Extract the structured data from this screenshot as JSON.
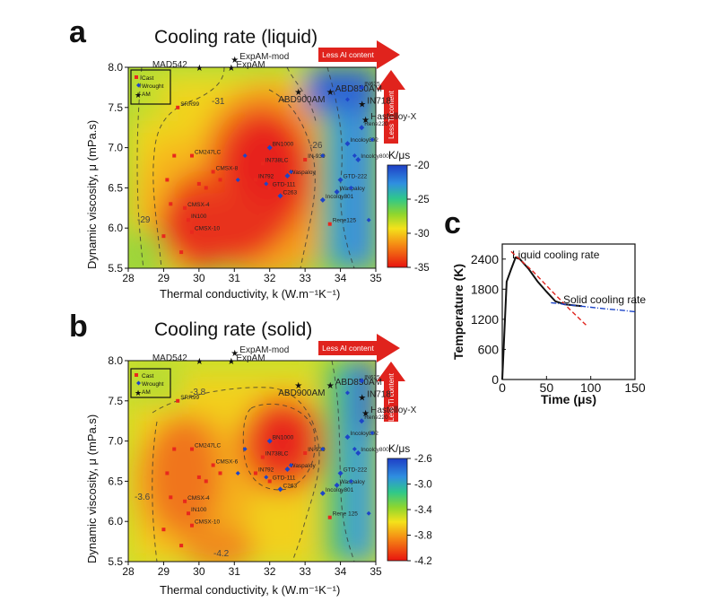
{
  "panel_a": {
    "letter": "a",
    "title": "Cooling rate (liquid)",
    "ylabel": "Dynamic viscosity, μ (mPa.s)",
    "xlabel": "Thermal conductivity, k (W.m⁻¹K⁻¹)",
    "less_al": "Less Al content",
    "less_ti": "Less Ti content",
    "cb_title": "K/μs",
    "contour_labels": [
      "-31",
      "-29",
      "-26"
    ]
  },
  "panel_b": {
    "letter": "b",
    "title": "Cooling rate (solid)",
    "ylabel": "Dynamic viscosity, μ (mPa.s)",
    "xlabel": "Thermal conductivity, k (W.m⁻¹K⁻¹)",
    "less_al": "Less Al content",
    "less_ti": "Less Ti content",
    "cb_title": "K/μs",
    "contour_labels": [
      "-3.8",
      "-3.6",
      "-4.2"
    ]
  },
  "panel_c": {
    "letter": "c",
    "annotation_liquid": "Liquid cooling rate",
    "annotation_solid": "Solid cooling rate"
  },
  "legend": {
    "cast": "Cast",
    "wrought": "Wrought",
    "am": "AM"
  },
  "colors": {
    "red": "#e8281d",
    "blue": "#1d45c8",
    "arrow_red": "#e0231d"
  },
  "chart_data": [
    {
      "type": "heatmap",
      "title": "Cooling rate (liquid)",
      "xlabel": "Thermal conductivity, k (W.m⁻¹K⁻¹)",
      "ylabel": "Dynamic viscosity, μ (mPa.s)",
      "xlim": [
        28,
        35
      ],
      "ylim": [
        5.5,
        8.0
      ],
      "x_ticks": [
        "28",
        "29",
        "30",
        "31",
        "32",
        "33",
        "34",
        "35"
      ],
      "y_ticks": [
        "5.5",
        "6.0",
        "6.5",
        "7.0",
        "7.5",
        "8.0"
      ],
      "colorbar": {
        "label": "K/μs",
        "ticks": [
          "-20",
          "-25",
          "-30",
          "-35"
        ],
        "range": [
          -35,
          -20
        ]
      },
      "legend": [
        "Cast",
        "Wrought",
        "AM"
      ],
      "grid": false,
      "alloy_labels": [
        {
          "name": "MAD542",
          "x": 30.0,
          "y": 8.0,
          "family": "AM"
        },
        {
          "name": "ExpAM-mod",
          "x": 31.0,
          "y": 8.1,
          "family": "AM"
        },
        {
          "name": "ExpAM",
          "x": 30.9,
          "y": 8.0,
          "family": "AM"
        },
        {
          "name": "ABD850AM",
          "x": 33.7,
          "y": 7.7,
          "family": "AM"
        },
        {
          "name": "ABD900AM",
          "x": 32.8,
          "y": 7.7,
          "family": "AM"
        },
        {
          "name": "IN718",
          "x": 34.6,
          "y": 7.55,
          "family": "AM"
        },
        {
          "name": "Hastelloy-X",
          "x": 34.7,
          "y": 7.35,
          "family": "AM"
        },
        {
          "name": "IN625",
          "x": 34.6,
          "y": 7.75,
          "family": "Wrought"
        },
        {
          "name": "Rene220",
          "x": 34.6,
          "y": 7.25,
          "family": "Wrought"
        },
        {
          "name": "Incoloy802",
          "x": 34.2,
          "y": 7.05,
          "family": "Wrought"
        },
        {
          "name": "Incoloy800",
          "x": 34.5,
          "y": 6.85,
          "family": "Wrought"
        },
        {
          "name": "GTD-222",
          "x": 34.0,
          "y": 6.6,
          "family": "Wrought"
        },
        {
          "name": "Waspaloy",
          "x": 33.9,
          "y": 6.45,
          "family": "Wrought"
        },
        {
          "name": "Incoloy801",
          "x": 33.5,
          "y": 6.35,
          "family": "Wrought"
        },
        {
          "name": "Rene125",
          "x": 33.7,
          "y": 6.05,
          "family": "Cast"
        },
        {
          "name": "IN-939",
          "x": 33.0,
          "y": 6.85,
          "family": "Cast"
        },
        {
          "name": "BN1000",
          "x": 32.0,
          "y": 7.0,
          "family": "Wrought"
        },
        {
          "name": "IN738LC",
          "x": 31.8,
          "y": 6.8,
          "family": "Cast"
        },
        {
          "name": "Waspaloy",
          "x": 32.5,
          "y": 6.65,
          "family": "Wrought"
        },
        {
          "name": "IN792",
          "x": 31.6,
          "y": 6.6,
          "family": "Cast"
        },
        {
          "name": "GTD-111",
          "x": 32.0,
          "y": 6.5,
          "family": "Cast"
        },
        {
          "name": "C263",
          "x": 32.3,
          "y": 6.4,
          "family": "Wrought"
        },
        {
          "name": "SRR99",
          "x": 29.4,
          "y": 7.5,
          "family": "Cast"
        },
        {
          "name": "CM247LC",
          "x": 29.8,
          "y": 6.9,
          "family": "Cast"
        },
        {
          "name": "CMSX-8",
          "x": 30.4,
          "y": 6.7,
          "family": "Cast"
        },
        {
          "name": "CMSX-4",
          "x": 29.6,
          "y": 6.25,
          "family": "Cast"
        },
        {
          "name": "IN100",
          "x": 29.7,
          "y": 6.1,
          "family": "Cast"
        },
        {
          "name": "CMSX-10",
          "x": 29.8,
          "y": 5.95,
          "family": "Cast"
        }
      ]
    },
    {
      "type": "heatmap",
      "title": "Cooling rate (solid)",
      "xlabel": "Thermal conductivity, k (W.m⁻¹K⁻¹)",
      "ylabel": "Dynamic viscosity, μ (mPa.s)",
      "xlim": [
        28,
        35
      ],
      "ylim": [
        5.5,
        8.0
      ],
      "x_ticks": [
        "28",
        "29",
        "30",
        "31",
        "32",
        "33",
        "34",
        "35"
      ],
      "y_ticks": [
        "5.5",
        "6.0",
        "6.5",
        "7.0",
        "7.5",
        "8.0"
      ],
      "colorbar": {
        "label": "K/μs",
        "ticks": [
          "-2.6",
          "-3.0",
          "-3.4",
          "-3.8",
          "-4.2"
        ],
        "range": [
          -4.2,
          -2.6
        ]
      },
      "legend": [
        "Cast",
        "Wrought",
        "AM"
      ],
      "grid": false,
      "alloy_labels": [
        {
          "name": "MAD542",
          "x": 30.0,
          "y": 8.0,
          "family": "AM"
        },
        {
          "name": "ExpAM-mod",
          "x": 31.0,
          "y": 8.1,
          "family": "AM"
        },
        {
          "name": "ExpAM",
          "x": 30.9,
          "y": 8.0,
          "family": "AM"
        },
        {
          "name": "ABD850AM",
          "x": 33.7,
          "y": 7.7,
          "family": "AM"
        },
        {
          "name": "ABD900AM",
          "x": 32.8,
          "y": 7.7,
          "family": "AM"
        },
        {
          "name": "IN718",
          "x": 34.6,
          "y": 7.55,
          "family": "AM"
        },
        {
          "name": "Hastelloy-X",
          "x": 34.7,
          "y": 7.35,
          "family": "AM"
        },
        {
          "name": "IN625",
          "x": 34.6,
          "y": 7.75,
          "family": "Wrought"
        },
        {
          "name": "Rene220",
          "x": 34.6,
          "y": 7.25,
          "family": "Wrought"
        },
        {
          "name": "Incoloy802",
          "x": 34.2,
          "y": 7.05,
          "family": "Wrought"
        },
        {
          "name": "Incoloy800",
          "x": 34.5,
          "y": 6.85,
          "family": "Wrought"
        },
        {
          "name": "GTD-222",
          "x": 34.0,
          "y": 6.6,
          "family": "Wrought"
        },
        {
          "name": "Waspaloy",
          "x": 33.9,
          "y": 6.45,
          "family": "Wrought"
        },
        {
          "name": "Incoloy801",
          "x": 33.5,
          "y": 6.35,
          "family": "Wrought"
        },
        {
          "name": "Rene 125",
          "x": 33.7,
          "y": 6.05,
          "family": "Cast"
        },
        {
          "name": "IN-939",
          "x": 33.0,
          "y": 6.85,
          "family": "Cast"
        },
        {
          "name": "BN1000",
          "x": 32.0,
          "y": 7.0,
          "family": "Wrought"
        },
        {
          "name": "IN738LC",
          "x": 31.8,
          "y": 6.8,
          "family": "Cast"
        },
        {
          "name": "Waspaloy",
          "x": 32.5,
          "y": 6.65,
          "family": "Wrought"
        },
        {
          "name": "IN792",
          "x": 31.6,
          "y": 6.6,
          "family": "Cast"
        },
        {
          "name": "GTD-111",
          "x": 32.0,
          "y": 6.5,
          "family": "Cast"
        },
        {
          "name": "C263",
          "x": 32.3,
          "y": 6.4,
          "family": "Wrought"
        },
        {
          "name": "SRR99",
          "x": 29.4,
          "y": 7.5,
          "family": "Cast"
        },
        {
          "name": "CM247LC",
          "x": 29.8,
          "y": 6.9,
          "family": "Cast"
        },
        {
          "name": "CMSX-6",
          "x": 30.4,
          "y": 6.7,
          "family": "Cast"
        },
        {
          "name": "CMSX-4",
          "x": 29.6,
          "y": 6.25,
          "family": "Cast"
        },
        {
          "name": "IN100",
          "x": 29.7,
          "y": 6.1,
          "family": "Cast"
        },
        {
          "name": "CMSX-10",
          "x": 29.8,
          "y": 5.95,
          "family": "Cast"
        }
      ]
    },
    {
      "type": "line",
      "xlabel": "Time (μs)",
      "ylabel": "Temperature (K)",
      "xlim": [
        0,
        150
      ],
      "ylim": [
        0,
        2700
      ],
      "x_ticks": [
        "0",
        "50",
        "100",
        "150"
      ],
      "y_ticks": [
        "0",
        "600",
        "1200",
        "1800",
        "2400"
      ],
      "grid": false,
      "series": [
        {
          "name": "",
          "color": "#111111",
          "x": [
            0,
            5,
            10,
            15,
            20,
            30,
            40,
            50,
            60,
            70,
            80,
            90
          ],
          "y": [
            0,
            1950,
            2200,
            2430,
            2400,
            2200,
            1950,
            1750,
            1560,
            1500,
            1480,
            1460
          ]
        },
        {
          "name": "Liquid cooling rate",
          "color": "#e0231d",
          "x": [
            10,
            35,
            55,
            75,
            95
          ],
          "y": [
            2550,
            2150,
            1780,
            1420,
            1080
          ]
        },
        {
          "name": "Solid cooling rate",
          "color": "#1d45c8",
          "x": [
            55,
            75,
            95,
            115,
            135,
            150
          ],
          "y": [
            1530,
            1490,
            1450,
            1410,
            1380,
            1350
          ]
        }
      ]
    }
  ]
}
